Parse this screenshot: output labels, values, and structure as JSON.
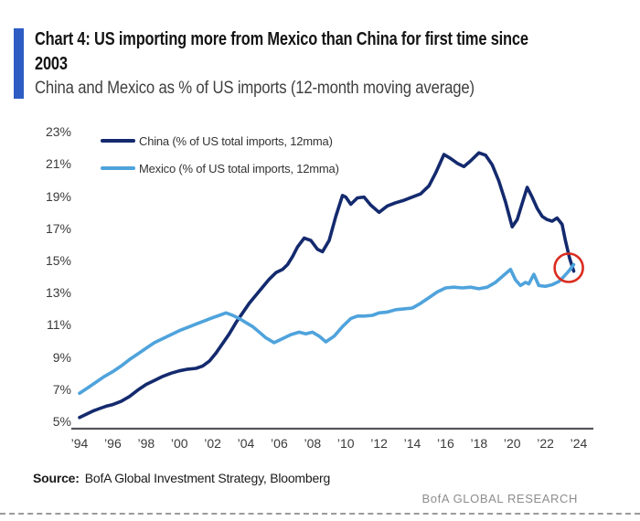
{
  "page": {
    "accent_color": "#2d5cc4",
    "title_lines": [
      "Chart 4: US importing more from Mexico than China for first time since",
      "2003"
    ],
    "subtitle": "China and Mexico as % of US imports (12-month moving average)",
    "source_label": "Source:",
    "source_text": "BofA Global Investment Strategy, Bloomberg",
    "brand": "BofA GLOBAL RESEARCH"
  },
  "chart_data": {
    "type": "line",
    "title": "China and Mexico as % of US imports (12-month moving average)",
    "grid": false,
    "legend_position": "top-left",
    "y_axis": {
      "unit": "%",
      "range": [
        5,
        23
      ],
      "ticks": [
        23,
        21,
        19,
        17,
        15,
        13,
        11,
        9,
        7,
        5
      ],
      "labels": [
        "23%",
        "21%",
        "19%",
        "17%",
        "15%",
        "13%",
        "11%",
        "9%",
        "7%",
        "5%"
      ]
    },
    "x_axis": {
      "range": [
        1994,
        2024
      ],
      "tick_years": [
        1994,
        1996,
        1998,
        2000,
        2002,
        2004,
        2006,
        2008,
        2010,
        2012,
        2014,
        2016,
        2018,
        2020,
        2022,
        2024
      ],
      "labels": [
        "’94",
        "’96",
        "’98",
        "’00",
        "’02",
        "’04",
        "’06",
        "’08",
        "’10",
        "’12",
        "’14",
        "’16",
        "’18",
        "’20",
        "’22",
        "’24"
      ]
    },
    "series": [
      {
        "key": "china",
        "name": "China (% of US total imports, 12mma)",
        "color": "#142a6e",
        "points": [
          [
            1994.0,
            5.3
          ],
          [
            1994.4,
            5.5
          ],
          [
            1994.8,
            5.7
          ],
          [
            1995.2,
            5.85
          ],
          [
            1995.6,
            6.0
          ],
          [
            1996.0,
            6.1
          ],
          [
            1996.5,
            6.3
          ],
          [
            1997.0,
            6.6
          ],
          [
            1997.5,
            7.0
          ],
          [
            1998.0,
            7.35
          ],
          [
            1998.5,
            7.6
          ],
          [
            1999.0,
            7.85
          ],
          [
            1999.5,
            8.05
          ],
          [
            2000.0,
            8.2
          ],
          [
            2000.5,
            8.3
          ],
          [
            2001.0,
            8.35
          ],
          [
            2001.4,
            8.5
          ],
          [
            2001.8,
            8.8
          ],
          [
            2002.2,
            9.3
          ],
          [
            2002.6,
            9.9
          ],
          [
            2003.0,
            10.5
          ],
          [
            2003.4,
            11.2
          ],
          [
            2003.8,
            11.8
          ],
          [
            2004.2,
            12.4
          ],
          [
            2004.6,
            12.9
          ],
          [
            2005.0,
            13.4
          ],
          [
            2005.4,
            13.9
          ],
          [
            2005.8,
            14.3
          ],
          [
            2006.2,
            14.5
          ],
          [
            2006.5,
            14.8
          ],
          [
            2006.8,
            15.3
          ],
          [
            2007.1,
            15.9
          ],
          [
            2007.5,
            16.45
          ],
          [
            2007.9,
            16.3
          ],
          [
            2008.3,
            15.75
          ],
          [
            2008.6,
            15.6
          ],
          [
            2009.0,
            16.3
          ],
          [
            2009.4,
            17.8
          ],
          [
            2009.8,
            19.1
          ],
          [
            2010.0,
            19.0
          ],
          [
            2010.3,
            18.55
          ],
          [
            2010.7,
            18.95
          ],
          [
            2011.1,
            19.0
          ],
          [
            2011.5,
            18.5
          ],
          [
            2012.0,
            18.05
          ],
          [
            2012.5,
            18.45
          ],
          [
            2013.0,
            18.65
          ],
          [
            2013.5,
            18.8
          ],
          [
            2014.0,
            19.0
          ],
          [
            2014.5,
            19.2
          ],
          [
            2015.0,
            19.7
          ],
          [
            2015.4,
            20.5
          ],
          [
            2015.9,
            21.65
          ],
          [
            2016.3,
            21.4
          ],
          [
            2016.7,
            21.1
          ],
          [
            2017.1,
            20.9
          ],
          [
            2017.5,
            21.25
          ],
          [
            2018.0,
            21.75
          ],
          [
            2018.4,
            21.6
          ],
          [
            2018.8,
            21.0
          ],
          [
            2019.2,
            20.0
          ],
          [
            2019.6,
            18.7
          ],
          [
            2020.0,
            17.15
          ],
          [
            2020.3,
            17.6
          ],
          [
            2020.6,
            18.6
          ],
          [
            2020.9,
            19.6
          ],
          [
            2021.2,
            19.0
          ],
          [
            2021.5,
            18.3
          ],
          [
            2021.8,
            17.8
          ],
          [
            2022.1,
            17.6
          ],
          [
            2022.4,
            17.5
          ],
          [
            2022.7,
            17.7
          ],
          [
            2023.0,
            17.3
          ],
          [
            2023.2,
            16.3
          ],
          [
            2023.45,
            15.2
          ],
          [
            2023.7,
            14.4
          ]
        ]
      },
      {
        "key": "mexico",
        "name": "Mexico (% of US total imports, 12mma)",
        "color": "#4fa3dc",
        "points": [
          [
            1994.0,
            6.8
          ],
          [
            1994.5,
            7.15
          ],
          [
            1995.0,
            7.5
          ],
          [
            1995.5,
            7.85
          ],
          [
            1996.0,
            8.15
          ],
          [
            1996.5,
            8.5
          ],
          [
            1997.0,
            8.9
          ],
          [
            1997.5,
            9.25
          ],
          [
            1998.0,
            9.6
          ],
          [
            1998.5,
            9.95
          ],
          [
            1999.0,
            10.2
          ],
          [
            1999.5,
            10.45
          ],
          [
            2000.0,
            10.7
          ],
          [
            2000.5,
            10.9
          ],
          [
            2001.0,
            11.1
          ],
          [
            2001.5,
            11.3
          ],
          [
            2002.0,
            11.5
          ],
          [
            2002.4,
            11.65
          ],
          [
            2002.8,
            11.8
          ],
          [
            2003.2,
            11.65
          ],
          [
            2003.6,
            11.45
          ],
          [
            2004.0,
            11.2
          ],
          [
            2004.4,
            10.95
          ],
          [
            2004.8,
            10.6
          ],
          [
            2005.2,
            10.25
          ],
          [
            2005.7,
            9.95
          ],
          [
            2006.2,
            10.2
          ],
          [
            2006.7,
            10.45
          ],
          [
            2007.2,
            10.6
          ],
          [
            2007.6,
            10.5
          ],
          [
            2008.0,
            10.6
          ],
          [
            2008.4,
            10.35
          ],
          [
            2008.8,
            10.0
          ],
          [
            2009.3,
            10.35
          ],
          [
            2009.8,
            10.95
          ],
          [
            2010.3,
            11.45
          ],
          [
            2010.7,
            11.6
          ],
          [
            2011.1,
            11.6
          ],
          [
            2011.6,
            11.65
          ],
          [
            2012.0,
            11.8
          ],
          [
            2012.5,
            11.85
          ],
          [
            2013.0,
            12.0
          ],
          [
            2013.5,
            12.05
          ],
          [
            2014.0,
            12.1
          ],
          [
            2014.5,
            12.4
          ],
          [
            2015.0,
            12.75
          ],
          [
            2015.5,
            13.1
          ],
          [
            2016.0,
            13.35
          ],
          [
            2016.5,
            13.4
          ],
          [
            2017.0,
            13.35
          ],
          [
            2017.5,
            13.4
          ],
          [
            2018.0,
            13.3
          ],
          [
            2018.5,
            13.4
          ],
          [
            2019.0,
            13.7
          ],
          [
            2019.5,
            14.15
          ],
          [
            2019.9,
            14.5
          ],
          [
            2020.2,
            13.85
          ],
          [
            2020.5,
            13.5
          ],
          [
            2020.8,
            13.7
          ],
          [
            2021.0,
            13.6
          ],
          [
            2021.3,
            14.2
          ],
          [
            2021.6,
            13.5
          ],
          [
            2022.0,
            13.45
          ],
          [
            2022.4,
            13.55
          ],
          [
            2022.8,
            13.75
          ],
          [
            2023.1,
            14.05
          ],
          [
            2023.4,
            14.4
          ],
          [
            2023.7,
            14.8
          ]
        ]
      }
    ],
    "annotation": {
      "type": "circle",
      "x": 2023.4,
      "y": 14.6,
      "color": "#da2c20",
      "note": "Mexico overtakes China at end of series"
    }
  }
}
